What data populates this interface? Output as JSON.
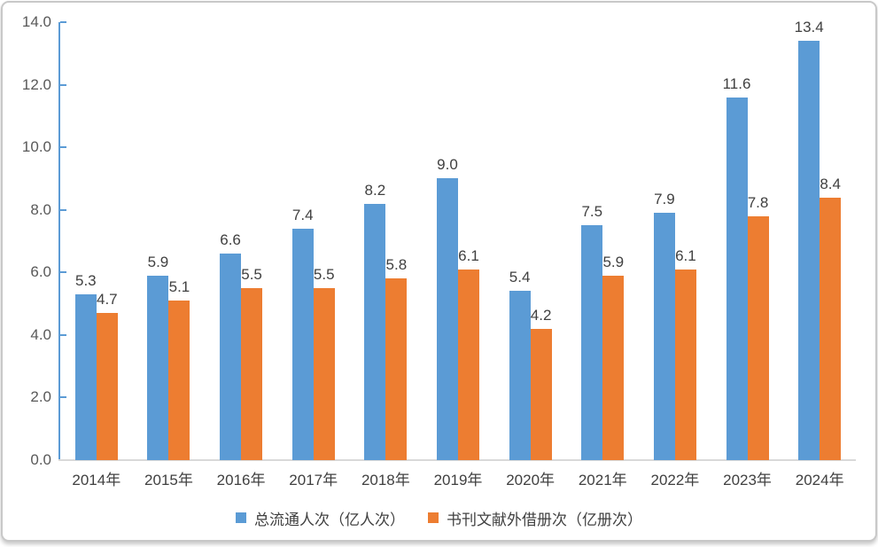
{
  "chart_data": {
    "type": "bar",
    "categories": [
      "2014年",
      "2015年",
      "2016年",
      "2017年",
      "2018年",
      "2019年",
      "2020年",
      "2021年",
      "2022年",
      "2023年",
      "2024年"
    ],
    "series": [
      {
        "name": "总流通人次（亿人次）",
        "color": "#5B9BD5",
        "values": [
          5.3,
          5.9,
          6.6,
          7.4,
          8.2,
          9.0,
          5.4,
          7.5,
          7.9,
          11.6,
          13.4
        ],
        "labels": [
          "5.3",
          "5.9",
          "6.6",
          "7.4",
          "8.2",
          "9.0",
          "5.4",
          "7.5",
          "7.9",
          "11.6",
          "13.4"
        ]
      },
      {
        "name": "书刊文献外借册次（亿册次）",
        "color": "#ED7D31",
        "values": [
          4.7,
          5.1,
          5.5,
          5.5,
          5.8,
          6.1,
          4.2,
          5.9,
          6.1,
          7.8,
          8.4
        ],
        "labels": [
          "4.7",
          "5.1",
          "5.5",
          "5.5",
          "5.8",
          "6.1",
          "4.2",
          "5.9",
          "6.1",
          "7.8",
          "8.4"
        ]
      }
    ],
    "title": "",
    "xlabel": "",
    "ylabel": "",
    "ylim": [
      0,
      14
    ],
    "ytick_step": 2,
    "ytick_labels": [
      "0.0",
      "2.0",
      "4.0",
      "6.0",
      "8.0",
      "10.0",
      "12.0",
      "14.0"
    ],
    "grid": false,
    "data_labels": true,
    "legend_position": "bottom"
  },
  "colors": {
    "series_blue": "#5B9BD5",
    "series_orange": "#ED7D31",
    "y_axis_line": "#5B9BD5",
    "x_axis_line": "#D9D9D9",
    "tick_label_text": "#595959",
    "data_label_text": "#404040",
    "category_label_text": "#404040",
    "card_border": "#C8C8C8"
  }
}
